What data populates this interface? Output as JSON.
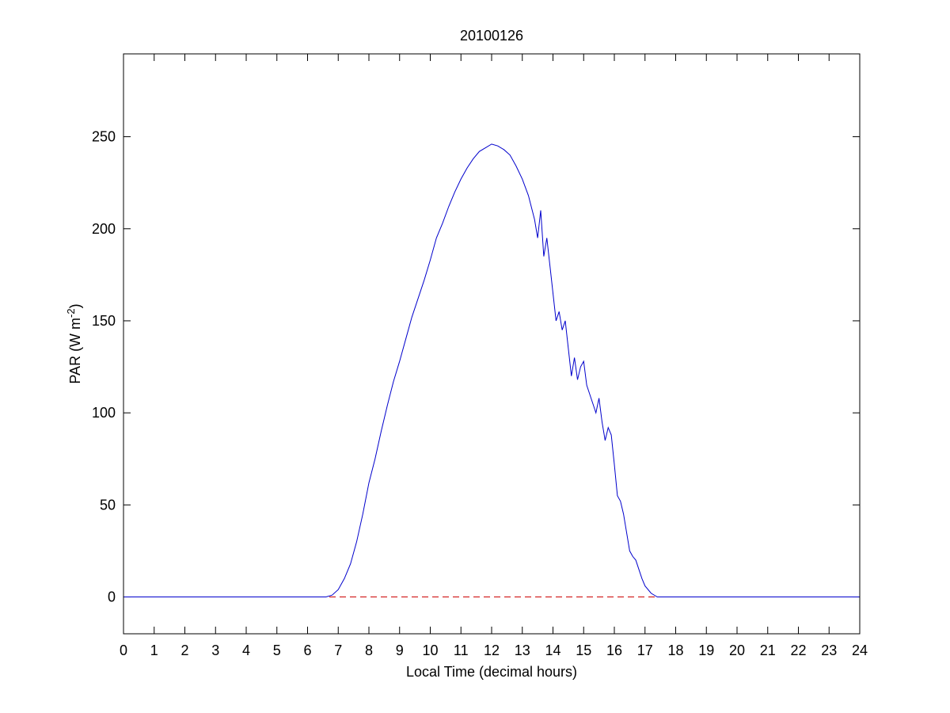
{
  "chart_data": {
    "type": "line",
    "title": "20100126",
    "xlabel": "Local Time (decimal hours)",
    "ylabel": {
      "prefix": "PAR (W m",
      "superscript": "-2",
      "suffix": ")"
    },
    "xlim": [
      0,
      24
    ],
    "ylim": [
      -20,
      295
    ],
    "xticks": [
      0,
      1,
      2,
      3,
      4,
      5,
      6,
      7,
      8,
      9,
      10,
      11,
      12,
      13,
      14,
      15,
      16,
      17,
      18,
      19,
      20,
      21,
      22,
      23,
      24
    ],
    "yticks": [
      0,
      50,
      100,
      150,
      200,
      250
    ],
    "grid": false,
    "colors": {
      "series": "#0000cc",
      "baseline": "#cc0000"
    },
    "series": [
      {
        "x": [
          0,
          1,
          2,
          3,
          4,
          5,
          6,
          6.6,
          6.8,
          7.0,
          7.2,
          7.4,
          7.6,
          7.8,
          8.0,
          8.2,
          8.4,
          8.6,
          8.8,
          9.0,
          9.2,
          9.4,
          9.6,
          9.8,
          10.0,
          10.2,
          10.4,
          10.6,
          10.8,
          11.0,
          11.2,
          11.4,
          11.6,
          11.8,
          12.0,
          12.2,
          12.4,
          12.6,
          12.8,
          13.0,
          13.2,
          13.4,
          13.5,
          13.6,
          13.7,
          13.8,
          13.9,
          14.0,
          14.1,
          14.2,
          14.3,
          14.4,
          14.5,
          14.6,
          14.7,
          14.8,
          14.9,
          15.0,
          15.1,
          15.2,
          15.3,
          15.4,
          15.5,
          15.6,
          15.7,
          15.8,
          15.9,
          16.0,
          16.1,
          16.2,
          16.3,
          16.4,
          16.5,
          16.6,
          16.7,
          16.8,
          16.9,
          17.0,
          17.2,
          17.4,
          17.6,
          17.8,
          18.0,
          19,
          20,
          21,
          22,
          23,
          24
        ],
        "y": [
          0,
          0,
          0,
          0,
          0,
          0,
          0,
          0,
          1,
          4,
          10,
          18,
          30,
          45,
          62,
          75,
          90,
          104,
          117,
          128,
          140,
          152,
          162,
          172,
          183,
          195,
          203,
          212,
          220,
          227,
          233,
          238,
          242,
          244,
          246,
          245,
          243,
          240,
          234,
          227,
          218,
          205,
          195,
          210,
          185,
          195,
          180,
          165,
          150,
          155,
          145,
          150,
          135,
          120,
          130,
          118,
          125,
          128,
          115,
          110,
          105,
          100,
          108,
          95,
          85,
          92,
          88,
          72,
          55,
          52,
          45,
          35,
          25,
          22,
          20,
          15,
          10,
          6,
          2,
          0,
          0,
          0,
          0,
          0,
          0,
          0,
          0,
          0,
          0
        ]
      },
      {
        "x": [
          0,
          24
        ],
        "y": [
          0,
          0
        ]
      }
    ]
  }
}
